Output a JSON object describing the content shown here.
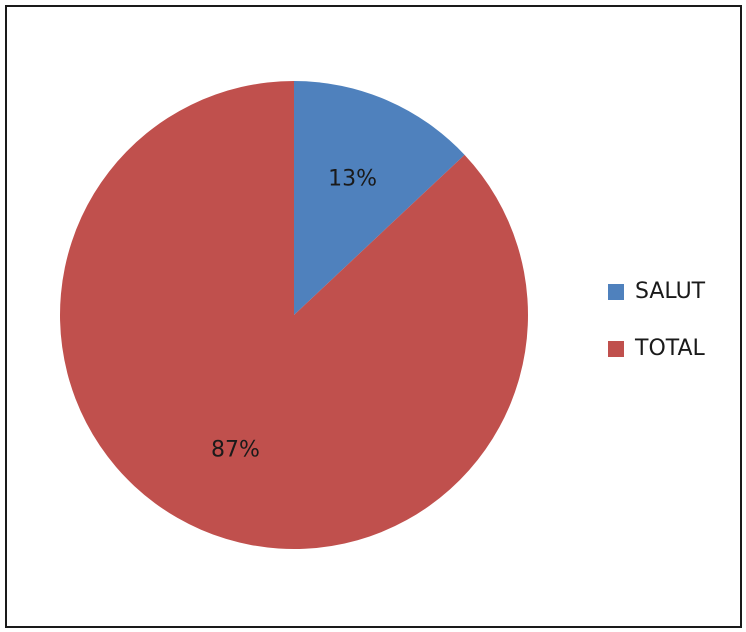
{
  "chart_data": {
    "type": "pie",
    "categories": [
      "SALUT",
      "TOTAL"
    ],
    "values": [
      13,
      87
    ],
    "value_labels": [
      "13%",
      "87%"
    ],
    "colors": [
      "#4f81bd",
      "#c0504d"
    ],
    "legend_position": "right",
    "title": "",
    "start_angle": "top, clockwise"
  }
}
